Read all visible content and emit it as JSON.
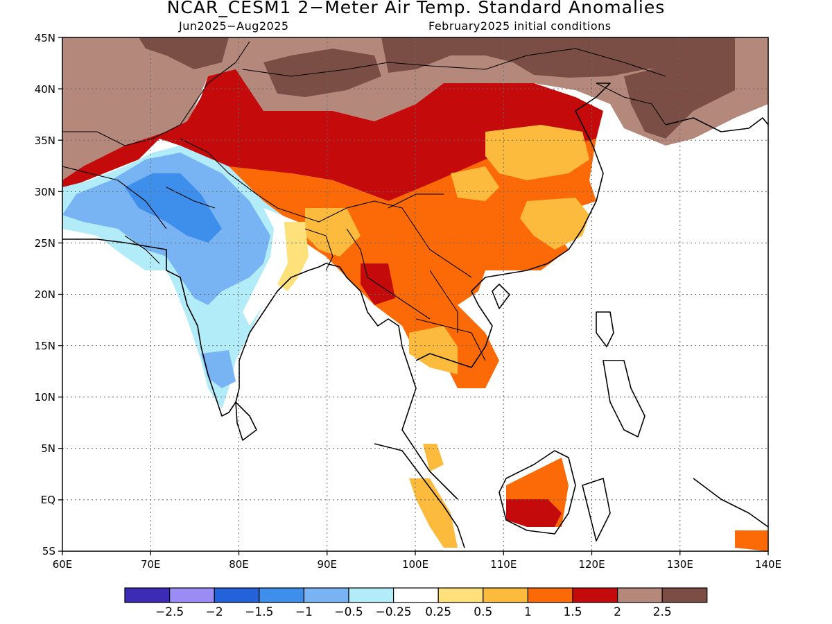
{
  "title": "NCAR_CESM1 2−Meter Air Temp. Standard Anomalies",
  "subtitle_left": "Jun2025−Aug2025",
  "subtitle_right": "February2025 initial conditions",
  "lat_ticks": [
    "45N",
    "40N",
    "35N",
    "30N",
    "25N",
    "20N",
    "15N",
    "10N",
    "5N",
    "EQ",
    "5S"
  ],
  "lon_ticks": [
    "60E",
    "70E",
    "80E",
    "90E",
    "100E",
    "110E",
    "120E",
    "130E",
    "140E"
  ],
  "colorbar": {
    "colors": [
      "#3b2bb5",
      "#9b8cf5",
      "#2362d8",
      "#3e8eec",
      "#78b4f4",
      "#b1ecf8",
      "#ffffff",
      "#ffe17c",
      "#fdbb3d",
      "#fb6a06",
      "#c40a0a",
      "#b5887c",
      "#7a4e44"
    ],
    "labels": [
      "−2.5",
      "−2",
      "−1.5",
      "−1",
      "−0.5",
      "−0.25",
      "0.25",
      "0.5",
      "1",
      "1.5",
      "2",
      "2.5"
    ]
  },
  "chart_data": {
    "type": "heatmap",
    "title": "NCAR_CESM1 2−Meter Air Temp. Standard Anomalies",
    "subtitle": "Jun2025−Aug2025 / February2025 initial conditions",
    "xlim": [
      60,
      140
    ],
    "ylim": [
      -5,
      45
    ],
    "levels": [
      -2.5,
      -2,
      -1.5,
      -1,
      -0.5,
      -0.25,
      0.25,
      0.5,
      1,
      1.5,
      2,
      2.5
    ],
    "regions": [
      {
        "name": "Tibetan Plateau / northern China",
        "level": "1.5 to 2"
      },
      {
        "name": "Central/Western Asia north of India",
        "level": "2 to 2.5"
      },
      {
        "name": "Mongolia",
        "level": "above 2.5"
      },
      {
        "name": "Central/western India",
        "level": "-1 to -0.5"
      },
      {
        "name": "Southern India",
        "level": "-0.5 to -0.25"
      },
      {
        "name": "Eastern China",
        "level": "0.5 to 1"
      },
      {
        "name": "Southeast Asia mainland",
        "level": "1 to 1.5"
      },
      {
        "name": "Borneo",
        "level": "1.5 to 2"
      }
    ]
  }
}
